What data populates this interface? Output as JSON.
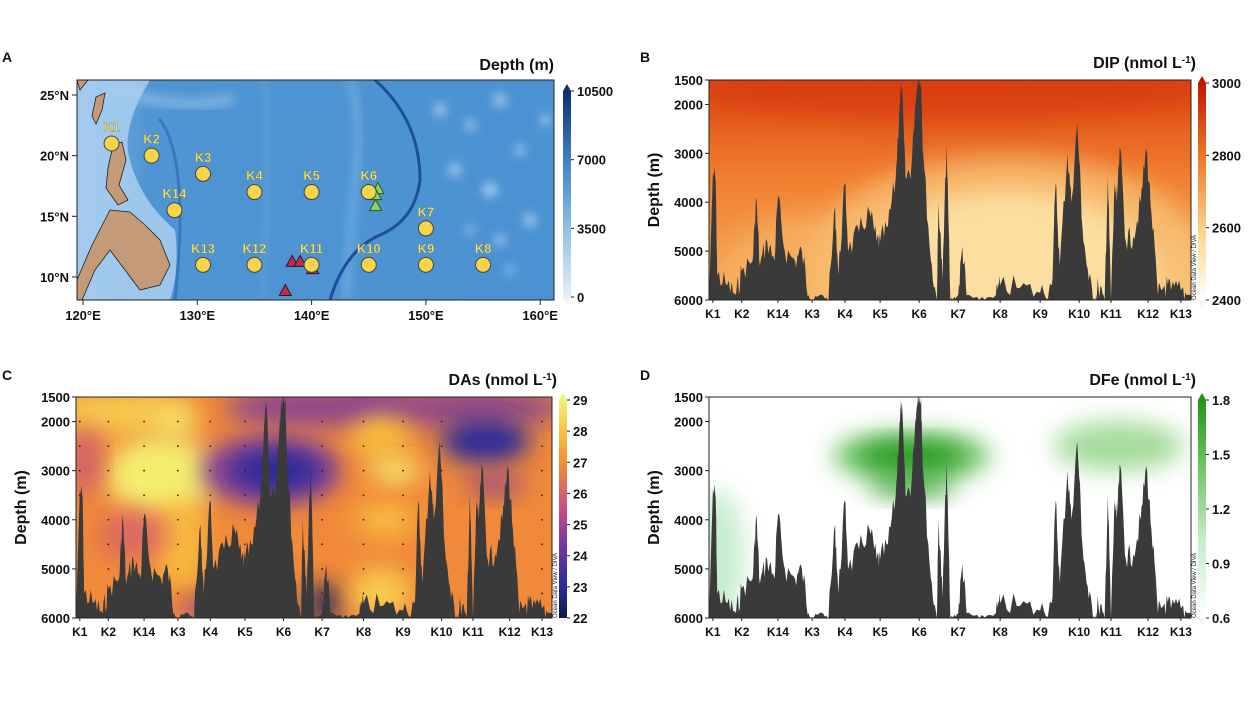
{
  "chart_data": [
    {
      "panel": "A",
      "type": "map",
      "title": "Depth (m)",
      "lon_ticks": [
        "120°E",
        "130°E",
        "140°E",
        "150°E",
        "160°E"
      ],
      "lat_ticks": [
        "25°N",
        "20°N",
        "15°N",
        "10°N"
      ],
      "colorbar": {
        "ticks": [
          "10500",
          "7000",
          "3500",
          "0"
        ],
        "min": 0,
        "max": 10500,
        "colors": [
          "#e6eef8",
          "#9cc3e8",
          "#4a90d0",
          "#0c2f6e"
        ]
      },
      "stations": [
        {
          "name": "K1",
          "lon": 122.5,
          "lat": 21
        },
        {
          "name": "K2",
          "lon": 126,
          "lat": 20
        },
        {
          "name": "K3",
          "lon": 130.5,
          "lat": 18.5
        },
        {
          "name": "K4",
          "lon": 135,
          "lat": 17
        },
        {
          "name": "K5",
          "lon": 140,
          "lat": 17
        },
        {
          "name": "K6",
          "lon": 145,
          "lat": 17
        },
        {
          "name": "K7",
          "lon": 150,
          "lat": 14
        },
        {
          "name": "K8",
          "lon": 155,
          "lat": 11
        },
        {
          "name": "K9",
          "lon": 150,
          "lat": 11
        },
        {
          "name": "K10",
          "lon": 145,
          "lat": 11
        },
        {
          "name": "K11",
          "lon": 140,
          "lat": 11
        },
        {
          "name": "K12",
          "lon": 135,
          "lat": 11
        },
        {
          "name": "K13",
          "lon": 130.5,
          "lat": 11
        },
        {
          "name": "K14",
          "lon": 128,
          "lat": 15.5
        }
      ],
      "red_triangles": [
        {
          "lon": 138.3,
          "lat": 11.2
        },
        {
          "lon": 139.0,
          "lat": 11.2
        },
        {
          "lon": 140.1,
          "lat": 10.6
        },
        {
          "lon": 137.7,
          "lat": 8.8
        }
      ],
      "green_triangles": [
        {
          "lon": 145.8,
          "lat": 17.2
        },
        {
          "lon": 145.6,
          "lat": 16.7
        },
        {
          "lon": 145.6,
          "lat": 15.8
        }
      ],
      "colors": {
        "station": "#f7d54a",
        "station_label": "#f2e27a",
        "land": "#c49a78",
        "ocean": "#4a90d0"
      }
    },
    {
      "panel": "B",
      "type": "heatmap",
      "title": "DIP (nmol L",
      "title_sup": "-1",
      "ylabel": "Depth (m)",
      "yticks": [
        1500,
        2000,
        3000,
        4000,
        5000,
        6000
      ],
      "ylim": [
        6000,
        1500
      ],
      "colorbar": {
        "ticks": [
          "3000",
          "2800",
          "2600",
          "2400"
        ],
        "min": 2400,
        "max": 3000,
        "colors": [
          "#ffffff",
          "#fbd890",
          "#f07a28",
          "#c01800"
        ]
      },
      "credit": "Ocean Data View / DIVA"
    },
    {
      "panel": "C",
      "type": "heatmap",
      "title": "DAs (nmol L",
      "title_sup": "-1",
      "ylabel": "Depth (m)",
      "yticks": [
        1500,
        2000,
        3000,
        4000,
        5000,
        6000
      ],
      "ylim": [
        6000,
        1500
      ],
      "colorbar": {
        "ticks": [
          "29",
          "28",
          "27",
          "26",
          "25",
          "24",
          "23",
          "22"
        ],
        "min": 22,
        "max": 29,
        "colors": [
          "#0d1a40",
          "#2c2c9a",
          "#7a3a9e",
          "#c45080",
          "#f08a3a",
          "#f8c040",
          "#f2f27a"
        ]
      },
      "credit": "Ocean Data View / DIVA"
    },
    {
      "panel": "D",
      "type": "heatmap",
      "title": "DFe (nmol L",
      "title_sup": "-1",
      "ylabel": "Depth (m)",
      "yticks": [
        1500,
        2000,
        3000,
        4000,
        5000,
        6000
      ],
      "ylim": [
        6000,
        1500
      ],
      "colorbar": {
        "ticks": [
          "1.8",
          "1.5",
          "1.2",
          "0.9",
          "0.6"
        ],
        "min": 0.6,
        "max": 1.8,
        "colors": [
          "#ffffff",
          "#c8eccb",
          "#6cc462",
          "#22961a"
        ]
      },
      "credit": "Ocean Data View / DIVA"
    }
  ],
  "section_stations": [
    "K1",
    "K2",
    "K14",
    "K3",
    "K4",
    "K5",
    "K6",
    "K7",
    "K8",
    "K9",
    "K10",
    "K11",
    "K12",
    "K13"
  ],
  "seafloor_depth_m": [
    [
      0,
      3400
    ],
    [
      0.1,
      3550
    ],
    [
      0.15,
      5500
    ],
    [
      0.5,
      5700
    ],
    [
      0.8,
      5900
    ],
    [
      1,
      5400
    ],
    [
      1.3,
      5200
    ],
    [
      1.4,
      3900
    ],
    [
      1.5,
      5300
    ],
    [
      1.7,
      4800
    ],
    [
      1.9,
      5200
    ],
    [
      2.0,
      3900
    ],
    [
      2.2,
      5000
    ],
    [
      2.5,
      5200
    ],
    [
      2.7,
      5000
    ],
    [
      2.9,
      5900
    ],
    [
      3.0,
      6000
    ],
    [
      3.3,
      5900
    ],
    [
      3.5,
      6000
    ],
    [
      3.7,
      4100
    ],
    [
      3.8,
      5500
    ],
    [
      4.0,
      3600
    ],
    [
      4.1,
      5000
    ],
    [
      4.4,
      4600
    ],
    [
      4.7,
      4200
    ],
    [
      4.9,
      4800
    ],
    [
      5.0,
      4800
    ],
    [
      5.2,
      4500
    ],
    [
      5.4,
      3500
    ],
    [
      5.5,
      2000
    ],
    [
      5.55,
      1600
    ],
    [
      5.65,
      3500
    ],
    [
      5.8,
      3300
    ],
    [
      5.9,
      2000
    ],
    [
      5.95,
      1500
    ],
    [
      6.05,
      1500
    ],
    [
      6.1,
      3000
    ],
    [
      6.3,
      5200
    ],
    [
      6.45,
      6000
    ],
    [
      6.5,
      4000
    ],
    [
      6.6,
      5600
    ],
    [
      6.7,
      2800
    ],
    [
      6.8,
      6000
    ],
    [
      7.0,
      5900
    ],
    [
      7.1,
      4900
    ],
    [
      7.2,
      5900
    ],
    [
      7.5,
      6000
    ],
    [
      7.9,
      5900
    ],
    [
      8.0,
      5700
    ],
    [
      8.5,
      5750
    ],
    [
      9.0,
      5850
    ],
    [
      9.3,
      5700
    ],
    [
      9.4,
      3600
    ],
    [
      9.5,
      5300
    ],
    [
      9.7,
      3000
    ],
    [
      9.8,
      4000
    ],
    [
      9.95,
      2400
    ],
    [
      10.1,
      4500
    ],
    [
      10.3,
      5600
    ],
    [
      10.5,
      6000
    ],
    [
      10.6,
      5700
    ],
    [
      10.8,
      6000
    ],
    [
      10.9,
      3500
    ],
    [
      11.0,
      6000
    ],
    [
      11.1,
      3600
    ],
    [
      11.15,
      4000
    ],
    [
      11.25,
      2900
    ],
    [
      11.4,
      4800
    ],
    [
      11.6,
      4700
    ],
    [
      11.8,
      4000
    ],
    [
      11.95,
      2900
    ],
    [
      12.1,
      4200
    ],
    [
      12.3,
      5900
    ],
    [
      12.5,
      5700
    ],
    [
      12.7,
      5800
    ],
    [
      13,
      5800
    ],
    [
      13.2,
      5900
    ]
  ],
  "panel_letters": [
    "A",
    "B",
    "C",
    "D"
  ]
}
